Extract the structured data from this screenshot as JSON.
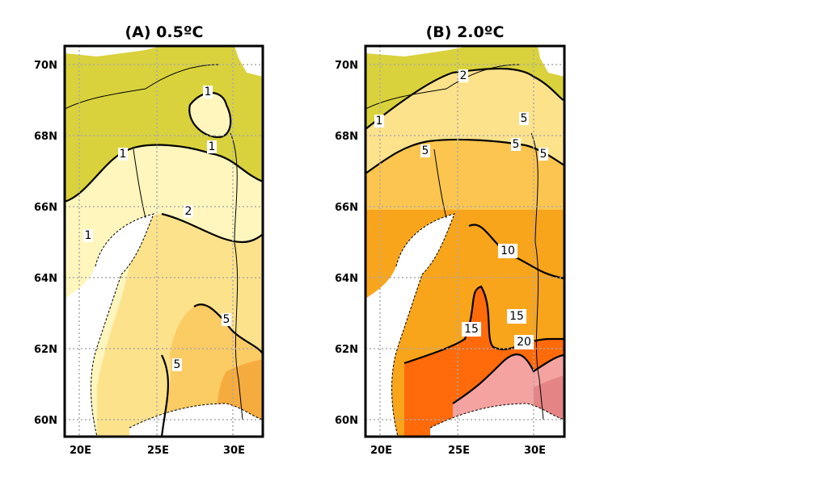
{
  "chart_data": [
    {
      "type": "heatmap",
      "title": "(A) 0.5ºC",
      "x_ticks": [
        "20E",
        "25E",
        "30E"
      ],
      "y_ticks": [
        "70N",
        "68N",
        "66N",
        "64N",
        "62N",
        "60N"
      ],
      "xlim": [
        19,
        32
      ],
      "ylim": [
        59.5,
        70.5
      ],
      "contour_labels": [
        "1",
        "1",
        "1",
        "1",
        "2",
        "5",
        "5"
      ],
      "levels": [
        1,
        2,
        5
      ],
      "colors": [
        "#d9d23c",
        "#fff6bd",
        "#fde28c",
        "#fbcb64",
        "#f6ab3e"
      ]
    },
    {
      "type": "heatmap",
      "title": "(B) 2.0ºC",
      "x_ticks": [
        "20E",
        "25E",
        "30E"
      ],
      "y_ticks": [
        "70N",
        "68N",
        "66N",
        "64N",
        "62N",
        "60N"
      ],
      "xlim": [
        19,
        32
      ],
      "ylim": [
        59.5,
        70.5
      ],
      "contour_labels": [
        "2",
        "1",
        "5",
        "5",
        "5",
        "5",
        "10",
        "15",
        "15",
        "20"
      ],
      "levels": [
        1,
        2,
        5,
        10,
        15,
        20
      ],
      "colors": [
        "#d9d23c",
        "#fde28c",
        "#fbc54f",
        "#f8a51c",
        "#ff6a0a",
        "#f5a3a0",
        "#e48484"
      ]
    }
  ]
}
